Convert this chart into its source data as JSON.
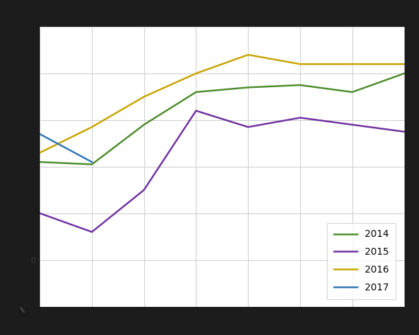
{
  "series": {
    "2014": {
      "x": [
        1,
        2,
        3,
        4,
        5,
        6,
        7,
        8
      ],
      "y": [
        42,
        41,
        58,
        72,
        74,
        75,
        72,
        80
      ],
      "color": "#4c8c2b",
      "linewidth": 1.8
    },
    "2015": {
      "x": [
        1,
        2,
        3,
        4,
        5,
        6,
        7,
        8
      ],
      "y": [
        20,
        12,
        30,
        64,
        57,
        61,
        58,
        55
      ],
      "color": "#7030a0",
      "linewidth": 1.8
    },
    "2016": {
      "x": [
        1,
        2,
        3,
        4,
        5,
        6,
        7,
        8
      ],
      "y": [
        46,
        57,
        70,
        80,
        88,
        84,
        84,
        84
      ],
      "color": "#c8a400",
      "linewidth": 1.8
    },
    "2017": {
      "x": [
        1,
        2
      ],
      "y": [
        54,
        42
      ],
      "color": "#2e75b6",
      "linewidth": 1.8
    }
  },
  "legend_order": [
    "2014",
    "2015",
    "2016",
    "2017"
  ],
  "xlim": [
    1,
    8
  ],
  "ylim": [
    -20,
    100
  ],
  "ytick_positions": [
    0
  ],
  "ytick_labels": [
    "0"
  ],
  "xticks": [
    1,
    2,
    3,
    4,
    5,
    6,
    7,
    8
  ],
  "grid_yticks": [
    0,
    20,
    40,
    60,
    80,
    100
  ],
  "grid_xticks": [
    1,
    2,
    3,
    4,
    5,
    6,
    7,
    8
  ],
  "grid_color": "#d0d0d0",
  "plot_background": "#ffffff",
  "figure_background": "#1c1c1c",
  "border_color": "#1c1c1c",
  "legend_fontsize": 10,
  "legend_handlelength": 2.5,
  "legend_labelspacing": 0.85,
  "legend_borderpad": 0.7
}
